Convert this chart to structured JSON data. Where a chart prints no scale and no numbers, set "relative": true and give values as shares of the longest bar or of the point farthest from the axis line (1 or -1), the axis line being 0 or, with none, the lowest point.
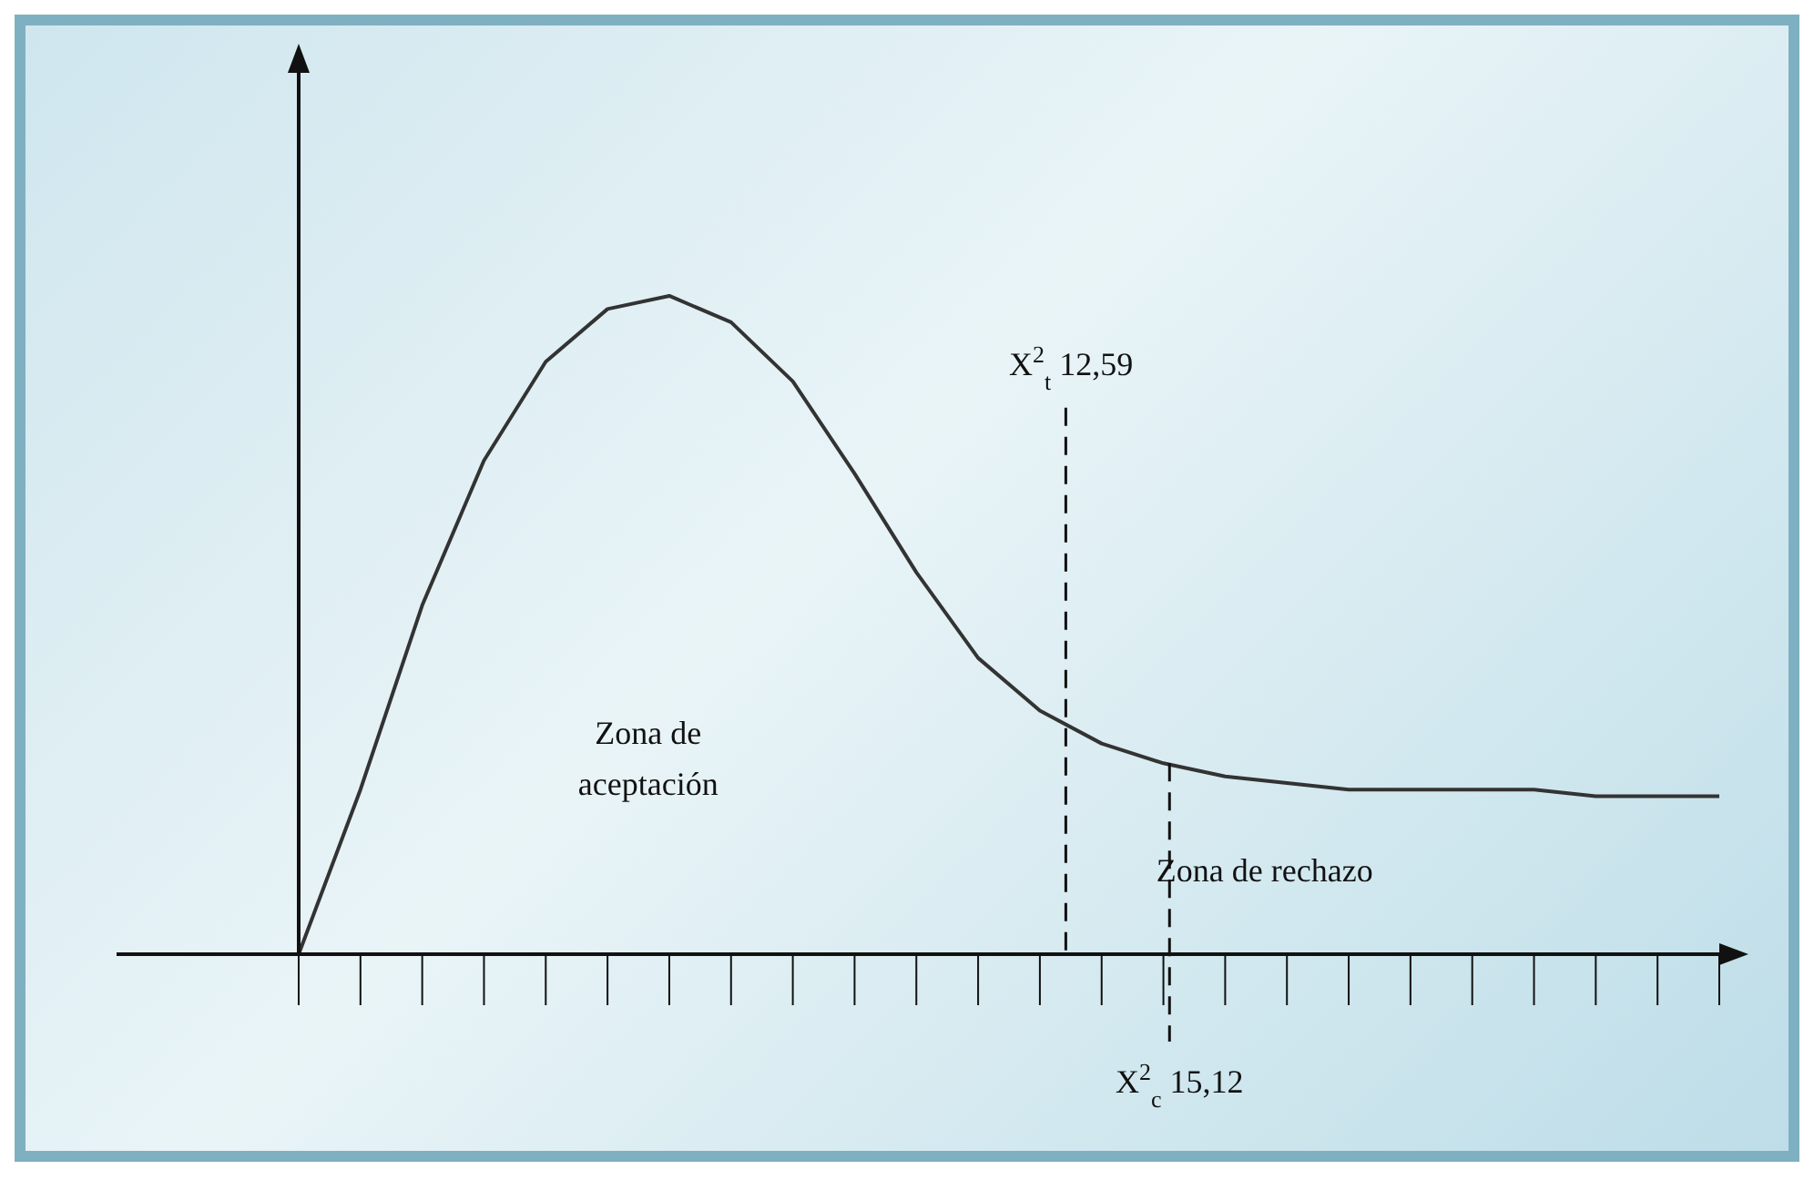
{
  "chart_data": {
    "type": "line",
    "relative": true,
    "color": "#333333",
    "categories": [
      null,
      null,
      null,
      null,
      null,
      null,
      null,
      null,
      null,
      null,
      null,
      null,
      null,
      null,
      null,
      null,
      null,
      null,
      null,
      null,
      null,
      null,
      null,
      null
    ],
    "values": [
      0,
      0.25,
      0.53,
      0.75,
      0.9,
      0.98,
      1,
      0.96,
      0.87,
      0.73,
      0.58,
      0.45,
      0.37,
      0.32,
      0.29,
      0.27,
      0.26,
      0.25,
      0.25,
      0.25,
      0.25,
      0.24,
      0.24,
      0.24
    ],
    "annotations": [
      "X$^{2}$$_{t}$ 12,59",
      "X$^{2}$$_{c}$  15,12",
      "Zona de aceptación",
      "Zona de rechazo"
    ],
    "marker": "none",
    "line_style": "solid"
  }
}
